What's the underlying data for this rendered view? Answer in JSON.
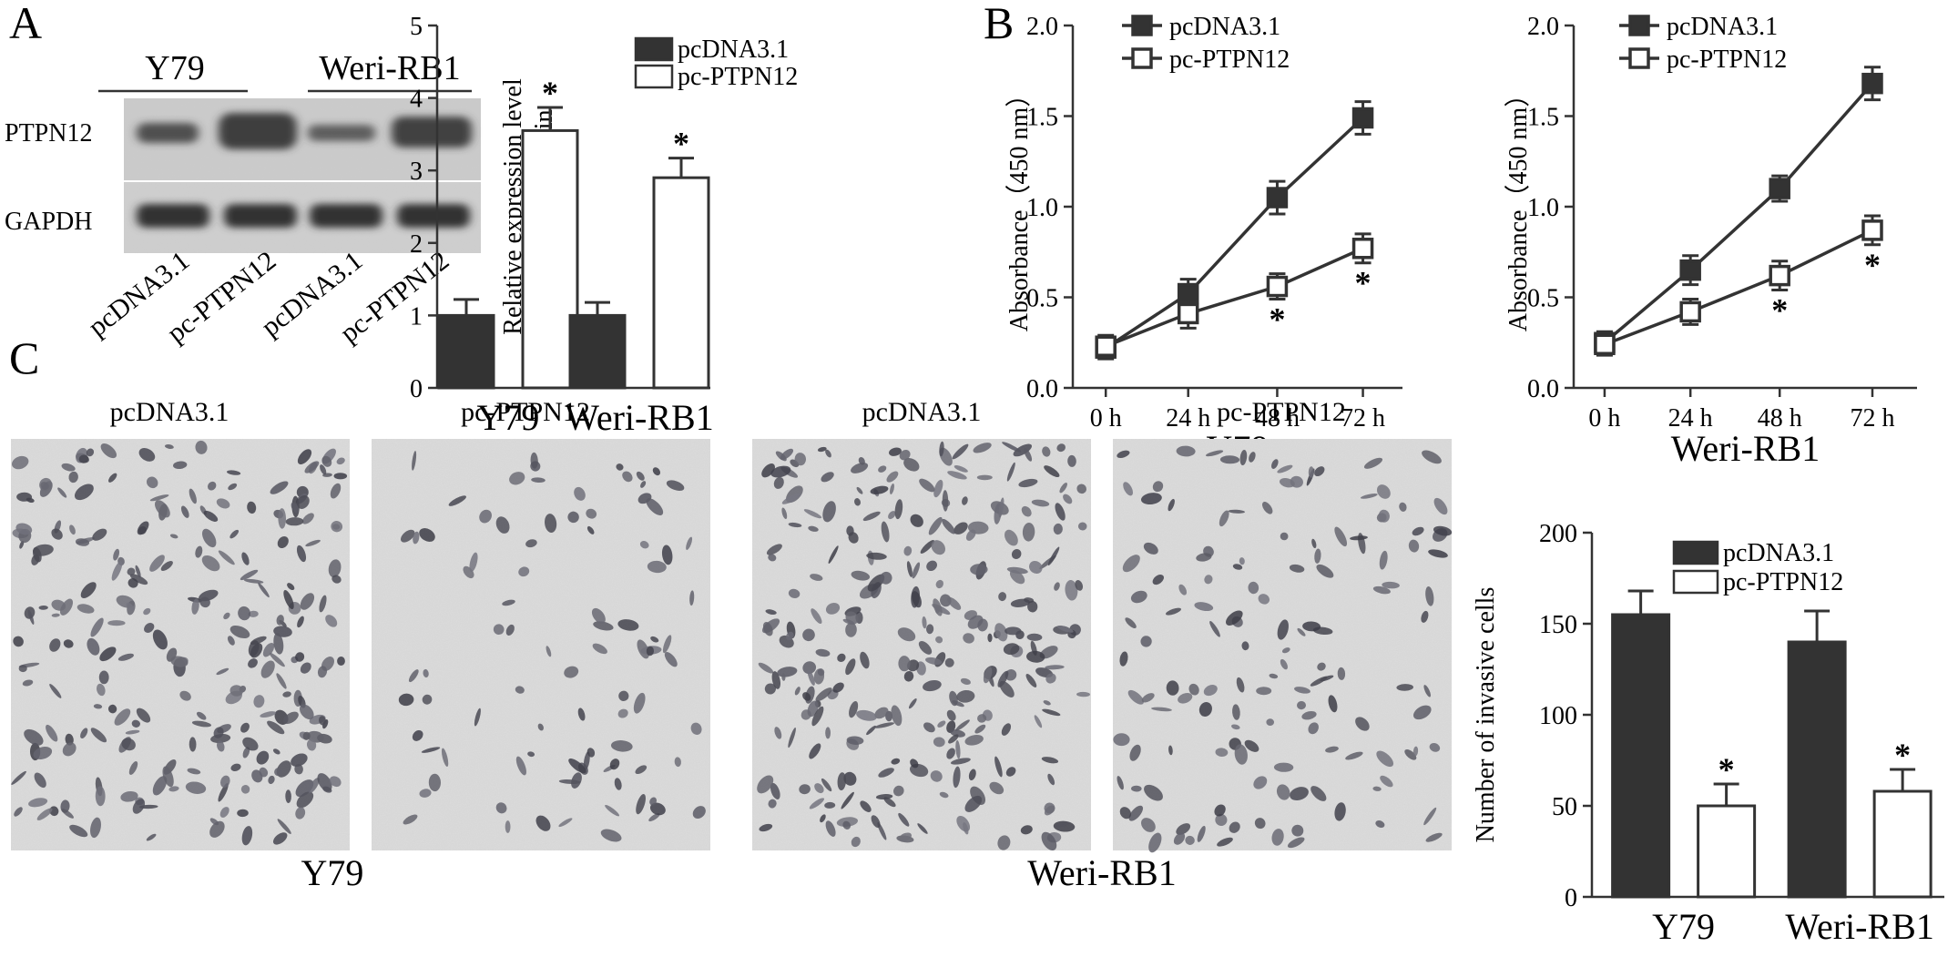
{
  "panels": {
    "a": "A",
    "b": "B",
    "c": "C"
  },
  "western_blot": {
    "group_labels": [
      "Y79",
      "Weri-RB1"
    ],
    "row_labels": [
      "PTPN12",
      "GAPDH"
    ],
    "lane_labels": [
      "pcDNA3.1",
      "pc-PTPN12",
      "pcDNA3.1",
      "pc-PTPN12"
    ]
  },
  "micrographs": {
    "titles": [
      "pcDNA3.1",
      "pc-PTPN12",
      "pcDNA3.1",
      "pc-PTPN12"
    ],
    "group_labels": [
      "Y79",
      "Weri-RB1"
    ],
    "cell_density": [
      1.0,
      0.35,
      1.1,
      0.55
    ]
  },
  "colors": {
    "filled": "#333333",
    "open": "#ffffff",
    "line": "#333333"
  },
  "chart_data": [
    {
      "type": "bar",
      "title": "",
      "ylabel_lines": [
        "Relative expression level",
        "of PTPN12 protein"
      ],
      "xlabel": "",
      "categories": [
        "Y79",
        "Weri-RB1"
      ],
      "ylim": [
        0,
        5
      ],
      "yticks": [
        "0",
        "1",
        "2",
        "3",
        "4",
        "5"
      ],
      "legend_position": "top",
      "series": [
        {
          "name": "pcDNA3.1",
          "values": [
            1.0,
            1.0
          ],
          "errors": [
            0.22,
            0.18
          ],
          "fill": "filled",
          "sig": [
            false,
            false
          ]
        },
        {
          "name": "pc-PTPN12",
          "values": [
            3.55,
            2.9
          ],
          "errors": [
            0.32,
            0.27
          ],
          "fill": "open",
          "sig": [
            true,
            true
          ]
        }
      ],
      "sig_marker": "*"
    },
    {
      "type": "line",
      "title": "",
      "ylabel": "Absorbance（450 nm）",
      "xlabel": "Y79",
      "x": [
        "0 h",
        "24 h",
        "48 h",
        "72 h"
      ],
      "ylim": [
        0,
        2.0
      ],
      "yticks": [
        "0.0",
        "0.5",
        "1.0",
        "1.5",
        "2.0"
      ],
      "legend_position": "top-left",
      "series": [
        {
          "name": "pcDNA3.1",
          "values": [
            0.22,
            0.52,
            1.05,
            1.49
          ],
          "errors": [
            0.06,
            0.08,
            0.09,
            0.09
          ],
          "marker": "filled",
          "sig": [
            false,
            false,
            false,
            false
          ]
        },
        {
          "name": "pc-PTPN12",
          "values": [
            0.23,
            0.41,
            0.56,
            0.77
          ],
          "errors": [
            0.06,
            0.08,
            0.07,
            0.08
          ],
          "marker": "open",
          "sig": [
            false,
            false,
            true,
            true
          ]
        }
      ],
      "sig_marker": "*"
    },
    {
      "type": "line",
      "title": "",
      "ylabel": "Absorbance（450 nm）",
      "xlabel": "Weri-RB1",
      "x": [
        "0 h",
        "24 h",
        "48 h",
        "72 h"
      ],
      "ylim": [
        0,
        2.0
      ],
      "yticks": [
        "0.0",
        "0.5",
        "1.0",
        "1.5",
        "2.0"
      ],
      "legend_position": "top-left",
      "series": [
        {
          "name": "pcDNA3.1",
          "values": [
            0.25,
            0.65,
            1.1,
            1.68
          ],
          "errors": [
            0.06,
            0.08,
            0.07,
            0.09
          ],
          "marker": "filled",
          "sig": [
            false,
            false,
            false,
            false
          ]
        },
        {
          "name": "pc-PTPN12",
          "values": [
            0.24,
            0.42,
            0.62,
            0.87
          ],
          "errors": [
            0.06,
            0.07,
            0.08,
            0.08
          ],
          "marker": "open",
          "sig": [
            false,
            false,
            true,
            true
          ]
        }
      ],
      "sig_marker": "*"
    },
    {
      "type": "bar",
      "title": "",
      "ylabel": "Number of invasive cells",
      "xlabel": "",
      "categories": [
        "Y79",
        "Weri-RB1"
      ],
      "ylim": [
        0,
        200
      ],
      "yticks": [
        "0",
        "50",
        "100",
        "150",
        "200"
      ],
      "legend_position": "top",
      "series": [
        {
          "name": "pcDNA3.1",
          "values": [
            155,
            140
          ],
          "errors": [
            13,
            17
          ],
          "fill": "filled",
          "sig": [
            false,
            false
          ]
        },
        {
          "name": "pc-PTPN12",
          "values": [
            50,
            58
          ],
          "errors": [
            12,
            12
          ],
          "fill": "open",
          "sig": [
            true,
            true
          ]
        }
      ],
      "sig_marker": "*"
    }
  ]
}
